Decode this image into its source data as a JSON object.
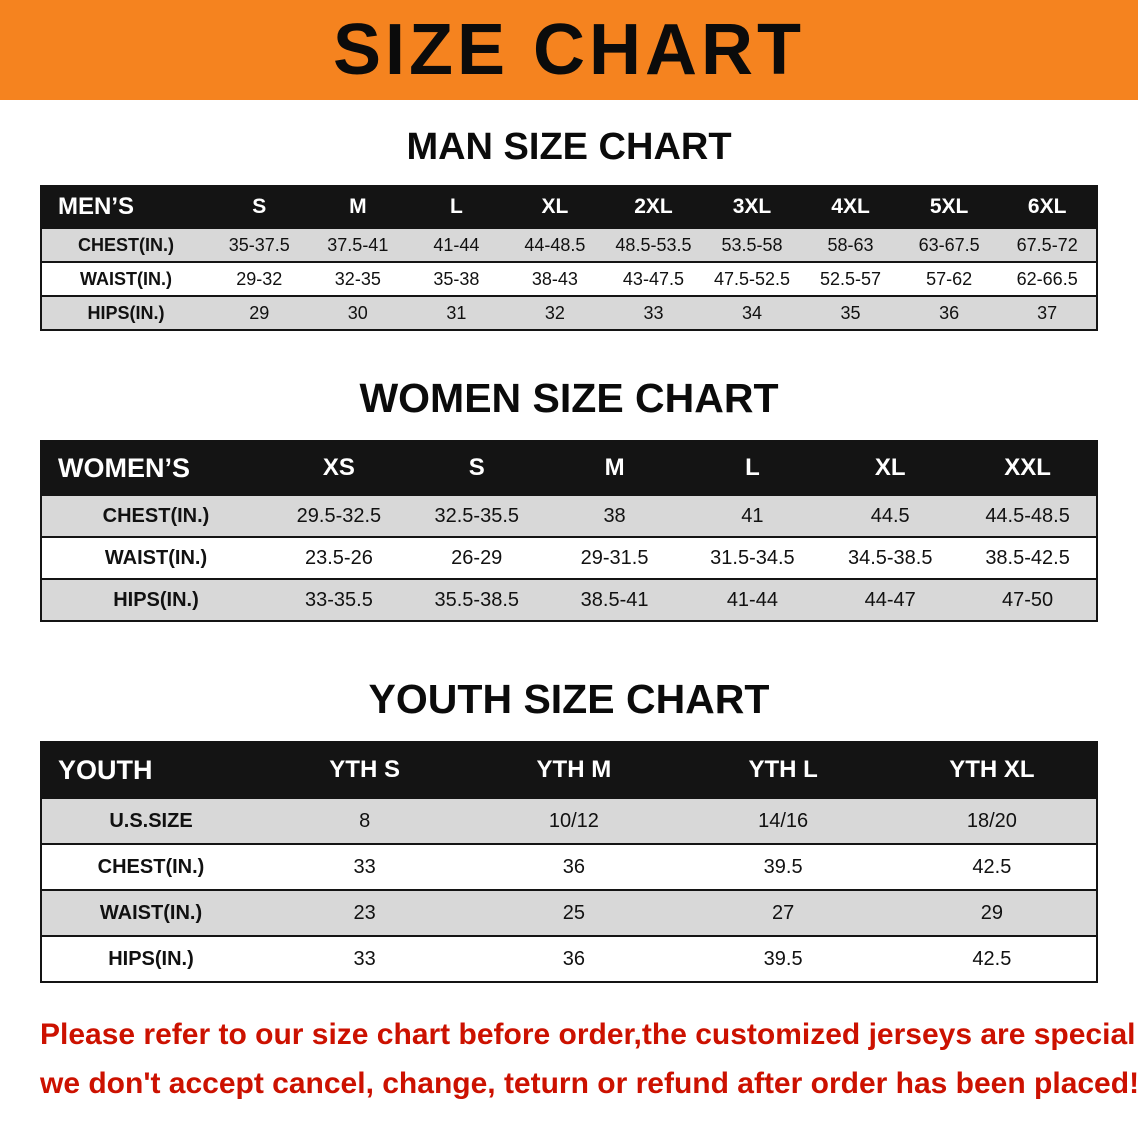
{
  "banner": {
    "title": "SIZE CHART"
  },
  "colors": {
    "banner_bg": "#F5831F",
    "table_header_bg": "#141414",
    "row_shade": "#D8D8D8",
    "footer_text": "#CC1100"
  },
  "tables": [
    {
      "id": "men",
      "heading": "MAN SIZE CHART",
      "header": [
        "MEN’S",
        "S",
        "M",
        "L",
        "XL",
        "2XL",
        "3XL",
        "4XL",
        "5XL",
        "6XL"
      ],
      "rows": [
        {
          "label": "CHEST(IN.)",
          "values": [
            "35-37.5",
            "37.5-41",
            "41-44",
            "44-48.5",
            "48.5-53.5",
            "53.5-58",
            "58-63",
            "63-67.5",
            "67.5-72"
          ]
        },
        {
          "label": "WAIST(IN.)",
          "values": [
            "29-32",
            "32-35",
            "35-38",
            "38-43",
            "43-47.5",
            "47.5-52.5",
            "52.5-57",
            "57-62",
            "62-66.5"
          ]
        },
        {
          "label": "HIPS(IN.)",
          "values": [
            "29",
            "30",
            "31",
            "32",
            "33",
            "34",
            "35",
            "36",
            "37"
          ]
        }
      ]
    },
    {
      "id": "women",
      "heading": "WOMEN SIZE CHART",
      "header": [
        "WOMEN’S",
        "XS",
        "S",
        "M",
        "L",
        "XL",
        "XXL"
      ],
      "rows": [
        {
          "label": "CHEST(IN.)",
          "values": [
            "29.5-32.5",
            "32.5-35.5",
            "38",
            "41",
            "44.5",
            "44.5-48.5"
          ]
        },
        {
          "label": "WAIST(IN.)",
          "values": [
            "23.5-26",
            "26-29",
            "29-31.5",
            "31.5-34.5",
            "34.5-38.5",
            "38.5-42.5"
          ]
        },
        {
          "label": "HIPS(IN.)",
          "values": [
            "33-35.5",
            "35.5-38.5",
            "38.5-41",
            "41-44",
            "44-47",
            "47-50"
          ]
        }
      ]
    },
    {
      "id": "youth",
      "heading": "YOUTH SIZE CHART",
      "header": [
        "YOUTH",
        "YTH S",
        "YTH M",
        "YTH L",
        "YTH XL"
      ],
      "rows": [
        {
          "label": "U.S.SIZE",
          "values": [
            "8",
            "10/12",
            "14/16",
            "18/20"
          ]
        },
        {
          "label": "CHEST(IN.)",
          "values": [
            "33",
            "36",
            "39.5",
            "42.5"
          ]
        },
        {
          "label": "WAIST(IN.)",
          "values": [
            "23",
            "25",
            "27",
            "29"
          ]
        },
        {
          "label": "HIPS(IN.)",
          "values": [
            "33",
            "36",
            "39.5",
            "42.5"
          ]
        }
      ]
    }
  ],
  "footer": {
    "line1": "Please refer to our size chart before order,the customized jerseys are special products,",
    "line2": "we don't accept cancel, change, teturn or refund after order has been placed!"
  }
}
